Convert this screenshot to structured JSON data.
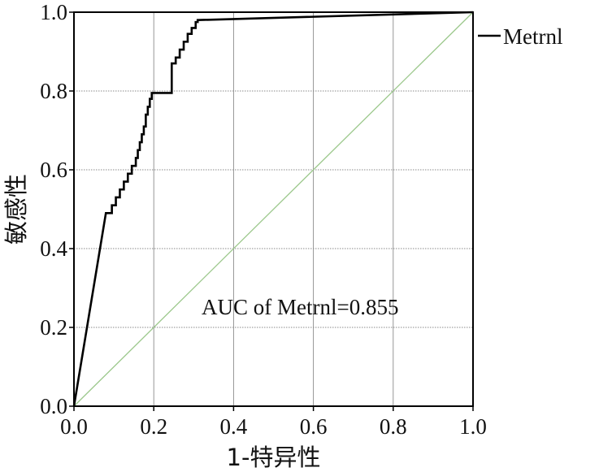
{
  "chart_data": {
    "type": "line",
    "xlabel": "1-特异性",
    "ylabel": "敏感性",
    "xlim": [
      0,
      1
    ],
    "ylim": [
      0,
      1
    ],
    "xticks": [
      "0.0",
      "0.2",
      "0.4",
      "0.6",
      "0.8",
      "1.0"
    ],
    "yticks": [
      "0.0",
      "0.2",
      "0.4",
      "0.6",
      "0.8",
      "1.0"
    ],
    "grid": true,
    "legend_position": "right",
    "annotation": "AUC of Metrnl=0.855",
    "series": [
      {
        "name": "Metrnl",
        "color": "#000000",
        "x": [
          0.0,
          0.08,
          0.08,
          0.095,
          0.095,
          0.105,
          0.105,
          0.115,
          0.115,
          0.125,
          0.125,
          0.135,
          0.135,
          0.145,
          0.145,
          0.155,
          0.155,
          0.16,
          0.16,
          0.165,
          0.165,
          0.17,
          0.17,
          0.175,
          0.175,
          0.18,
          0.18,
          0.185,
          0.185,
          0.19,
          0.19,
          0.195,
          0.195,
          0.245,
          0.245,
          0.255,
          0.255,
          0.265,
          0.265,
          0.275,
          0.275,
          0.285,
          0.285,
          0.295,
          0.295,
          0.305,
          0.305,
          0.31,
          0.31,
          1.0
        ],
        "y": [
          0.0,
          0.49,
          0.49,
          0.49,
          0.51,
          0.51,
          0.53,
          0.53,
          0.55,
          0.55,
          0.57,
          0.57,
          0.59,
          0.59,
          0.61,
          0.61,
          0.63,
          0.63,
          0.65,
          0.65,
          0.67,
          0.67,
          0.69,
          0.69,
          0.71,
          0.71,
          0.74,
          0.74,
          0.76,
          0.76,
          0.78,
          0.78,
          0.795,
          0.795,
          0.87,
          0.87,
          0.885,
          0.885,
          0.905,
          0.905,
          0.925,
          0.925,
          0.945,
          0.945,
          0.96,
          0.96,
          0.975,
          0.975,
          0.98,
          1.0
        ]
      },
      {
        "name": "",
        "color": "#9cc88c",
        "x": [
          0,
          1
        ],
        "y": [
          0,
          1
        ]
      }
    ]
  }
}
